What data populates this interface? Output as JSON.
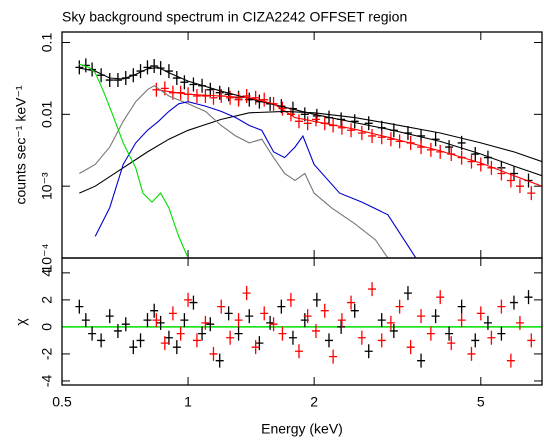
{
  "chart_data": [
    {
      "type": "scatter",
      "title": "Sky background spectrum in CIZA2242 OFFSET region",
      "y_label": "counts sec⁻¹ keV⁻¹",
      "ylog": true,
      "ylim": [
        0.0001,
        0.14
      ],
      "yticks": [
        0.1,
        0.01,
        {
          "value": 0.001,
          "label": "10⁻³"
        },
        {
          "value": 0.0001,
          "label": "10⁻⁴"
        }
      ],
      "series": [
        {
          "mode": "markers",
          "color": "#000000",
          "x": [
            0.55,
            0.57,
            0.59,
            0.62,
            0.65,
            0.68,
            0.71,
            0.74,
            0.77,
            0.8,
            0.83,
            0.86,
            0.9,
            0.94,
            0.98,
            1.03,
            1.08,
            1.13,
            1.19,
            1.25,
            1.32,
            1.4,
            1.48,
            1.57,
            1.67,
            1.78,
            1.9,
            2.03,
            2.17,
            2.32,
            2.5,
            2.7,
            2.9,
            3.1,
            3.35,
            3.6,
            3.9,
            4.2,
            4.5,
            4.85,
            5.2,
            5.6,
            6.0,
            6.5
          ],
          "values": [
            0.045,
            0.048,
            0.042,
            0.035,
            0.03,
            0.03,
            0.032,
            0.035,
            0.04,
            0.045,
            0.047,
            0.044,
            0.04,
            0.032,
            0.028,
            0.026,
            0.025,
            0.022,
            0.02,
            0.019,
            0.017,
            0.016,
            0.015,
            0.014,
            0.013,
            0.012,
            0.01,
            0.0095,
            0.009,
            0.0085,
            0.008,
            0.0075,
            0.0065,
            0.006,
            0.0055,
            0.005,
            0.0045,
            0.0035,
            0.004,
            0.0028,
            0.0025,
            0.0018,
            0.0015,
            0.0012
          ]
        },
        {
          "mode": "markers",
          "color": "#ff0000",
          "x": [
            0.84,
            0.88,
            0.92,
            0.96,
            1.0,
            1.05,
            1.1,
            1.15,
            1.2,
            1.26,
            1.32,
            1.38,
            1.45,
            1.52,
            1.6,
            1.68,
            1.76,
            1.84,
            1.93,
            2.02,
            2.12,
            2.22,
            2.33,
            2.45,
            2.6,
            2.75,
            2.9,
            3.05,
            3.2,
            3.4,
            3.6,
            3.8,
            4.0,
            4.25,
            4.5,
            4.75,
            5.0,
            5.3,
            5.6,
            5.9,
            6.2,
            6.6
          ],
          "values": [
            0.022,
            0.023,
            0.02,
            0.02,
            0.019,
            0.018,
            0.018,
            0.017,
            0.018,
            0.017,
            0.016,
            0.018,
            0.017,
            0.016,
            0.014,
            0.012,
            0.01,
            0.008,
            0.0075,
            0.0085,
            0.0075,
            0.007,
            0.0065,
            0.006,
            0.0055,
            0.005,
            0.0048,
            0.0045,
            0.0042,
            0.004,
            0.0035,
            0.0032,
            0.003,
            0.0028,
            0.0025,
            0.0022,
            0.002,
            0.0018,
            0.0015,
            0.0012,
            0.001,
            0.0008
          ]
        },
        {
          "mode": "line",
          "color": "#000000",
          "x": [
            0.55,
            0.6,
            0.65,
            0.7,
            0.75,
            0.8,
            0.85,
            0.9,
            1.0,
            1.2,
            1.5,
            2.0,
            3.0,
            4.0,
            5.0,
            6.0,
            7.0
          ],
          "values": [
            0.044,
            0.04,
            0.032,
            0.031,
            0.036,
            0.043,
            0.045,
            0.038,
            0.029,
            0.021,
            0.015,
            0.01,
            0.0062,
            0.0042,
            0.0028,
            0.0019,
            0.0014
          ]
        },
        {
          "mode": "line",
          "color": "#ff0000",
          "x": [
            0.84,
            1.0,
            1.2,
            1.4,
            1.6,
            1.8,
            2.0,
            2.5,
            3,
            4,
            5,
            6,
            7
          ],
          "values": [
            0.022,
            0.019,
            0.018,
            0.017,
            0.014,
            0.009,
            0.008,
            0.0062,
            0.0048,
            0.0031,
            0.0021,
            0.0014,
            0.001
          ]
        },
        {
          "mode": "line",
          "color": "#000000",
          "x": [
            0.55,
            0.6,
            0.7,
            0.8,
            0.9,
            1.0,
            1.2,
            1.4,
            1.7,
            2.0,
            2.5,
            3,
            4,
            5,
            6,
            7
          ],
          "values": [
            0.0008,
            0.001,
            0.0018,
            0.003,
            0.0045,
            0.006,
            0.0085,
            0.0105,
            0.011,
            0.0105,
            0.009,
            0.0075,
            0.0055,
            0.004,
            0.003,
            0.0022
          ]
        },
        {
          "mode": "line",
          "color": "#777777",
          "x": [
            0.55,
            0.6,
            0.65,
            0.7,
            0.75,
            0.8,
            0.83,
            0.9,
            1.0,
            1.1,
            1.2,
            1.3,
            1.4,
            1.5,
            1.6,
            1.7,
            1.8,
            1.9,
            2.0,
            2.2,
            2.5,
            2.8,
            3.0
          ],
          "values": [
            0.0015,
            0.002,
            0.0035,
            0.008,
            0.015,
            0.022,
            0.025,
            0.018,
            0.014,
            0.011,
            0.007,
            0.005,
            0.004,
            0.0045,
            0.0025,
            0.0015,
            0.0012,
            0.0015,
            0.0008,
            0.0005,
            0.0003,
            0.00018,
            0.0001
          ]
        },
        {
          "mode": "line",
          "color": "#0000cc",
          "x": [
            0.6,
            0.65,
            0.7,
            0.75,
            0.8,
            0.85,
            0.9,
            0.95,
            1.0,
            1.1,
            1.2,
            1.3,
            1.4,
            1.5,
            1.6,
            1.7,
            1.8,
            1.88,
            2.0,
            2.3,
            2.6,
            3.0,
            3.5
          ],
          "values": [
            0.0002,
            0.0005,
            0.002,
            0.004,
            0.006,
            0.008,
            0.011,
            0.014,
            0.015,
            0.013,
            0.011,
            0.009,
            0.007,
            0.006,
            0.003,
            0.0025,
            0.0035,
            0.005,
            0.002,
            0.0008,
            0.0006,
            0.0004,
            0.0001
          ]
        },
        {
          "mode": "line",
          "color": "#00dd00",
          "x": [
            0.55,
            0.58,
            0.6,
            0.63,
            0.66,
            0.7,
            0.75,
            0.78,
            0.82,
            0.86,
            0.9,
            0.95,
            1.0
          ],
          "values": [
            0.05,
            0.045,
            0.038,
            0.02,
            0.01,
            0.004,
            0.0018,
            0.0008,
            0.0006,
            0.0008,
            0.0005,
            0.0002,
            0.0001
          ]
        }
      ]
    },
    {
      "type": "scatter",
      "x_label": "Energy (keV)",
      "y_label": "χ",
      "xlog": true,
      "xlim": [
        0.5,
        7
      ],
      "xticks": [
        0.5,
        1,
        2,
        5
      ],
      "ylim": [
        -4.3,
        5.1
      ],
      "yticks": [
        4,
        2,
        0,
        -2,
        -4
      ],
      "hline": 0,
      "hline_color": "#00dd00",
      "series": [
        {
          "mode": "markers",
          "color": "#000000",
          "x": [
            0.55,
            0.57,
            0.59,
            0.62,
            0.65,
            0.68,
            0.71,
            0.74,
            0.77,
            0.8,
            0.83,
            0.86,
            0.9,
            0.94,
            0.98,
            1.03,
            1.08,
            1.13,
            1.19,
            1.25,
            1.32,
            1.4,
            1.48,
            1.57,
            1.67,
            1.78,
            1.9,
            2.03,
            2.17,
            2.32,
            2.5,
            2.7,
            2.9,
            3.1,
            3.35,
            3.6,
            3.9,
            4.2,
            4.5,
            4.85,
            5.2,
            5.6,
            6.0,
            6.5
          ],
          "values": [
            1.5,
            0.5,
            -0.5,
            -1.0,
            0.8,
            -0.3,
            0.2,
            -1.5,
            -1.0,
            0.5,
            1.2,
            0.3,
            -0.8,
            -1.5,
            0.5,
            1.8,
            -0.5,
            0.2,
            -2.5,
            1.0,
            -0.5,
            0.8,
            -1.2,
            0.3,
            1.5,
            -0.8,
            0.5,
            2.0,
            -1.0,
            0.0,
            1.2,
            -1.8,
            0.5,
            -0.3,
            2.5,
            -2.5,
            0.8,
            -0.5,
            1.5,
            -1.0,
            0.3,
            -0.5,
            1.8,
            2.2
          ]
        },
        {
          "mode": "markers",
          "color": "#ff0000",
          "x": [
            0.84,
            0.88,
            0.92,
            0.96,
            1.0,
            1.05,
            1.1,
            1.15,
            1.2,
            1.26,
            1.32,
            1.38,
            1.45,
            1.52,
            1.6,
            1.68,
            1.76,
            1.84,
            1.93,
            2.02,
            2.12,
            2.22,
            2.33,
            2.45,
            2.6,
            2.75,
            2.9,
            3.05,
            3.2,
            3.4,
            3.6,
            3.8,
            4.0,
            4.25,
            4.5,
            4.75,
            5.0,
            5.3,
            5.6,
            5.9,
            6.2,
            6.6
          ],
          "values": [
            0.5,
            -1.2,
            1.0,
            -0.5,
            2.0,
            -1.0,
            0.3,
            -2.0,
            1.5,
            -0.8,
            0.5,
            2.5,
            -1.5,
            1.0,
            0.2,
            -0.5,
            2.0,
            -1.8,
            0.8,
            -0.3,
            1.2,
            -2.2,
            0.5,
            1.8,
            -0.8,
            2.8,
            -1.0,
            0.3,
            1.5,
            -1.5,
            0.8,
            -0.5,
            2.2,
            -1.2,
            0.5,
            -2.0,
            1.0,
            -0.8,
            1.5,
            -2.5,
            0.3,
            -1.0
          ]
        }
      ]
    }
  ]
}
